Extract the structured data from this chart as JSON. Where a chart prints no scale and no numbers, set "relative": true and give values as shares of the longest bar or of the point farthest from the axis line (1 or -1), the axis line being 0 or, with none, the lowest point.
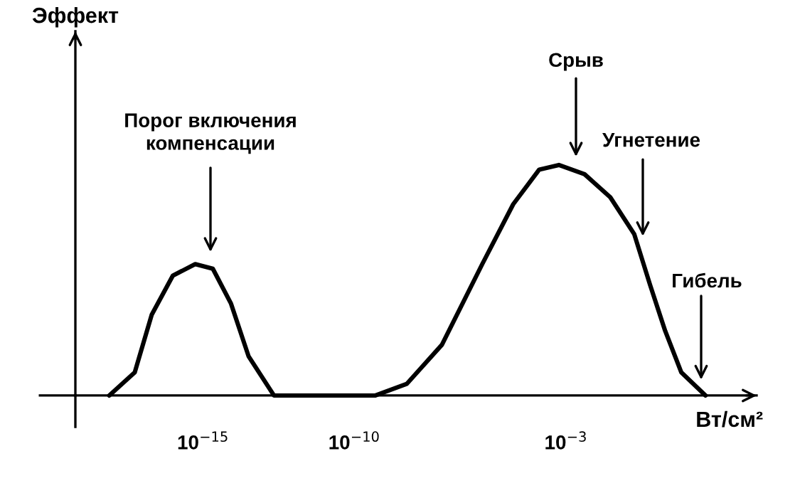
{
  "chart_data": {
    "type": "line",
    "relative": true,
    "xlabel": "Вт/см²",
    "color": "#000000",
    "marker": "none",
    "line_style": "solid",
    "grid": false,
    "legend": false,
    "log": "x",
    "x": [
      7.9e-19,
      5.5e-18,
      2e-17,
      1e-16,
      5.5e-16,
      2.1e-15,
      8.3e-15,
      3.2e-14,
      2.2e-13,
      5e-10,
      5.4e-09,
      7.9e-08,
      1.7e-06,
      1.8e-05,
      0.00013,
      0.00058,
      0.0041,
      0.029,
      0.18,
      0.6,
      1.9,
      6.5,
      41
    ],
    "values": [
      0,
      0.1,
      0.35,
      0.52,
      0.57,
      0.55,
      0.4,
      0.17,
      0,
      0,
      0.05,
      0.22,
      0.57,
      0.83,
      0.98,
      1.0,
      0.96,
      0.86,
      0.7,
      0.48,
      0.28,
      0.1,
      0
    ],
    "xlim": [
      6e-20,
      2000
    ],
    "xticks": [
      {
        "value": 1e-15,
        "label": "10$^{−15}$"
      },
      {
        "value": 1e-10,
        "label": "10$^{−10}$"
      },
      {
        "value": 0.001,
        "label": "10$^{−3}$"
      }
    ],
    "annotations": [
      "Порог включения\nкомпенсации",
      "Срыв",
      "Угнетение",
      "Гибель",
      "Эффект"
    ]
  }
}
